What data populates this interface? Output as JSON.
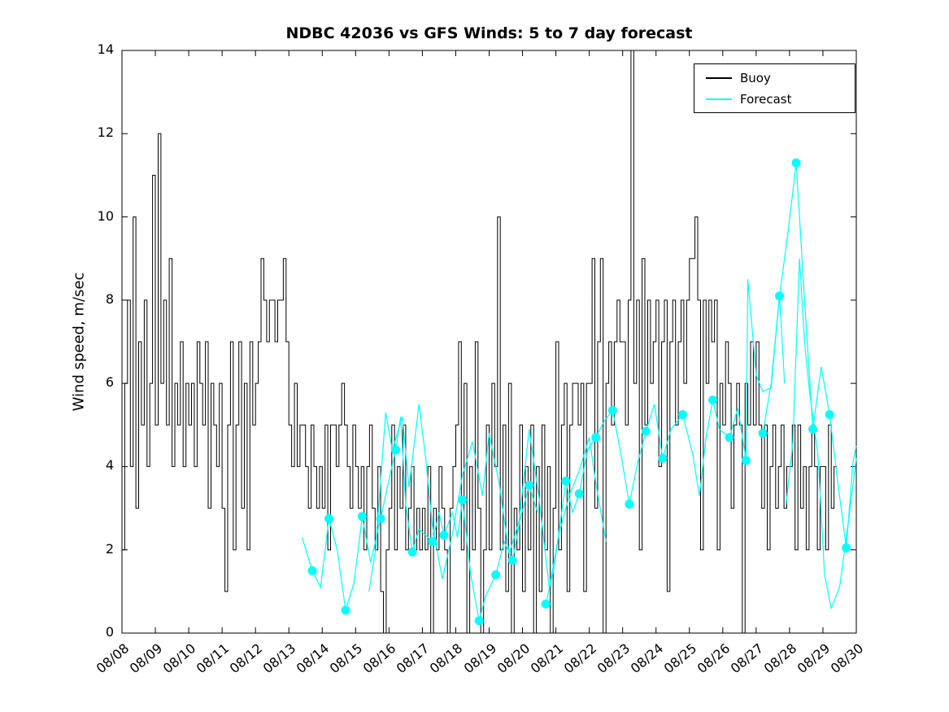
{
  "chart_data": {
    "type": "line",
    "title": "NDBC 42036 vs GFS Winds: 5 to 7 day forecast",
    "xlabel": "",
    "ylabel": "Wind speed, m/sec",
    "ylim": [
      0,
      14
    ],
    "x_range_days": [
      0,
      22
    ],
    "grid": false,
    "legend_position": "top-right",
    "colors": {
      "buoy": "#000000",
      "forecast": "#00ffff",
      "axis": "#000000",
      "background": "#ffffff"
    },
    "xtick_labels": [
      "08/08",
      "08/09",
      "08/10",
      "08/11",
      "08/12",
      "08/13",
      "08/14",
      "08/15",
      "08/16",
      "08/17",
      "08/18",
      "08/19",
      "08/20",
      "08/21",
      "08/22",
      "08/23",
      "08/24",
      "08/25",
      "08/26",
      "08/27",
      "08/28",
      "08/29",
      "08/30"
    ],
    "ytick_values": [
      0,
      2,
      4,
      6,
      8,
      10,
      12,
      14
    ],
    "legend": [
      {
        "label": "Buoy",
        "color": "#000000"
      },
      {
        "label": "Forecast",
        "color": "#00ffff"
      }
    ],
    "series": [
      {
        "name": "Buoy",
        "color": "#000000",
        "style": "stairs",
        "x_start": 0,
        "x_step": 0.0833333,
        "values": [
          2,
          6,
          8,
          4,
          10,
          3,
          7,
          5,
          8,
          4,
          6,
          11,
          5,
          12,
          6,
          8,
          5,
          9,
          4,
          6,
          5,
          7,
          4,
          6,
          5,
          6,
          4,
          7,
          6,
          5,
          7,
          3,
          6,
          5,
          4,
          6,
          3,
          1,
          5,
          7,
          2,
          5,
          7,
          3,
          6,
          2,
          7,
          5,
          6,
          7,
          9,
          8,
          7,
          8,
          8,
          7,
          8,
          8,
          9,
          7,
          5,
          4,
          6,
          4,
          5,
          5,
          4,
          3,
          5,
          4,
          3,
          4,
          3,
          5,
          2,
          5,
          5,
          4,
          5,
          6,
          5,
          4,
          3,
          5,
          4,
          3,
          4,
          2,
          4,
          5,
          3,
          2,
          4,
          1,
          0,
          2,
          3,
          5,
          2,
          4,
          3,
          5,
          2,
          3,
          4,
          2,
          3,
          2,
          3,
          2,
          4,
          0,
          3,
          2,
          4,
          3,
          2,
          0,
          3,
          4,
          5,
          7,
          2,
          6,
          0,
          4,
          2,
          7,
          3,
          0,
          2,
          5,
          2,
          6,
          4,
          10,
          2,
          5,
          1,
          6,
          0,
          3,
          2,
          5,
          1,
          4,
          2,
          5,
          0,
          4,
          1,
          5,
          2,
          4,
          0,
          3,
          7,
          2,
          5,
          6,
          1,
          5,
          6,
          6,
          5,
          6,
          1,
          6,
          6,
          9,
          3,
          7,
          9,
          0,
          6,
          7,
          5,
          7,
          8,
          7,
          7,
          5,
          8,
          14,
          6,
          8,
          2,
          9,
          5,
          8,
          6,
          7,
          8,
          4,
          7,
          8,
          1,
          7,
          8,
          5,
          7,
          8,
          6,
          8,
          9,
          9,
          10,
          8,
          2,
          8,
          6,
          8,
          7,
          8,
          2,
          6,
          5,
          7,
          6,
          3,
          5,
          6,
          5,
          0,
          6,
          5,
          7,
          5,
          7,
          5,
          3,
          5,
          2,
          4,
          5,
          3,
          4,
          5,
          3,
          4,
          4,
          5,
          2,
          5,
          3,
          4,
          2,
          4,
          5,
          4,
          2,
          4,
          4,
          2,
          5,
          3,
          4,
          4
        ]
      },
      {
        "name": "Forecast run 1",
        "color": "#00ffff",
        "style": "line",
        "points": [
          [
            5.4,
            2.3
          ],
          [
            5.7,
            1.5
          ],
          [
            5.95,
            1.1
          ],
          [
            6.2,
            2.75
          ],
          [
            6.45,
            2.0
          ],
          [
            6.7,
            0.55
          ],
          [
            6.95,
            1.2
          ],
          [
            7.2,
            2.8
          ],
          [
            7.45,
            1.7
          ],
          [
            7.75,
            2.75
          ],
          [
            7.95,
            3.5
          ],
          [
            8.2,
            4.4
          ],
          [
            8.35,
            5.2
          ],
          [
            8.5,
            3.1
          ],
          [
            8.7,
            1.95
          ],
          [
            8.9,
            2.5
          ],
          [
            9.3,
            2.2
          ],
          [
            9.5,
            2.9
          ],
          [
            9.65,
            2.35
          ],
          [
            9.9,
            2.9
          ],
          [
            10.05,
            2.3
          ],
          [
            10.2,
            3.2
          ],
          [
            10.45,
            1.4
          ],
          [
            10.7,
            0.3
          ],
          [
            10.9,
            0.9
          ],
          [
            11.2,
            1.4
          ],
          [
            11.45,
            2.2
          ],
          [
            11.7,
            1.75
          ],
          [
            11.95,
            2.8
          ],
          [
            12.2,
            3.55
          ],
          [
            12.45,
            2.9
          ]
        ]
      },
      {
        "name": "Forecast run 2",
        "color": "#00ffff",
        "style": "line",
        "points": [
          [
            7.4,
            1.0
          ],
          [
            7.6,
            2.0
          ],
          [
            7.9,
            5.3
          ],
          [
            8.1,
            4.4
          ],
          [
            8.4,
            5.2
          ],
          [
            8.6,
            3.5
          ],
          [
            8.9,
            5.5
          ],
          [
            9.1,
            4.2
          ],
          [
            9.3,
            2.6
          ],
          [
            9.6,
            1.3
          ],
          [
            9.9,
            2.4
          ],
          [
            10.2,
            3.8
          ],
          [
            10.5,
            4.6
          ],
          [
            10.8,
            3.3
          ],
          [
            11.0,
            4.8
          ],
          [
            11.3,
            3.6
          ],
          [
            11.6,
            1.9
          ],
          [
            11.9,
            2.7
          ],
          [
            12.2,
            4.9
          ],
          [
            12.5,
            3.2
          ],
          [
            12.8,
            1.1
          ],
          [
            13.1,
            2.4
          ],
          [
            13.4,
            3.3
          ],
          [
            13.7,
            3.9
          ],
          [
            14.0,
            4.7
          ],
          [
            14.2,
            3.6
          ],
          [
            14.5,
            2.2
          ]
        ]
      },
      {
        "name": "Forecast run 3",
        "color": "#00ffff",
        "style": "line",
        "points": [
          [
            12.7,
            0.7
          ],
          [
            12.95,
            1.6
          ],
          [
            13.3,
            3.65
          ],
          [
            13.5,
            2.9
          ],
          [
            13.7,
            3.35
          ],
          [
            13.95,
            4.4
          ],
          [
            14.2,
            4.7
          ],
          [
            14.45,
            5.1
          ],
          [
            14.7,
            5.35
          ],
          [
            14.95,
            4.3
          ],
          [
            15.2,
            3.1
          ],
          [
            15.45,
            4.1
          ],
          [
            15.7,
            4.85
          ],
          [
            15.95,
            5.5
          ],
          [
            16.2,
            4.2
          ],
          [
            16.45,
            4.9
          ],
          [
            16.8,
            5.25
          ],
          [
            17.1,
            4.3
          ],
          [
            17.3,
            3.3
          ],
          [
            17.5,
            4.7
          ],
          [
            17.7,
            5.6
          ],
          [
            17.9,
            4.9
          ],
          [
            18.2,
            4.7
          ],
          [
            18.45,
            5.4
          ],
          [
            18.7,
            4.15
          ],
          [
            18.75,
            8.5
          ],
          [
            19.0,
            6.2
          ],
          [
            19.2,
            5.8
          ],
          [
            19.45,
            5.9
          ],
          [
            19.7,
            8.1
          ],
          [
            19.85,
            6.0
          ]
        ]
      },
      {
        "name": "Forecast run 4",
        "color": "#00ffff",
        "style": "line",
        "points": [
          [
            19.2,
            4.8
          ],
          [
            19.45,
            6.0
          ],
          [
            19.7,
            8.1
          ],
          [
            19.95,
            9.6
          ],
          [
            20.2,
            11.3
          ],
          [
            20.45,
            8.0
          ],
          [
            20.7,
            4.9
          ],
          [
            20.95,
            6.4
          ],
          [
            21.2,
            5.25
          ],
          [
            21.45,
            3.6
          ],
          [
            21.7,
            2.05
          ],
          [
            21.9,
            4.1
          ],
          [
            22.0,
            4.5
          ]
        ]
      },
      {
        "name": "Forecast run 5",
        "color": "#00ffff",
        "style": "line",
        "points": [
          [
            19.9,
            3.1
          ],
          [
            20.1,
            4.6
          ],
          [
            20.3,
            9.0
          ],
          [
            20.45,
            7.0
          ],
          [
            20.6,
            5.8
          ],
          [
            20.85,
            4.3
          ],
          [
            21.05,
            1.4
          ],
          [
            21.25,
            0.6
          ],
          [
            21.5,
            1.1
          ],
          [
            21.8,
            2.9
          ],
          [
            22.0,
            4.2
          ]
        ]
      }
    ],
    "forecast_markers": [
      [
        5.7,
        1.5
      ],
      [
        6.2,
        2.75
      ],
      [
        6.7,
        0.55
      ],
      [
        7.2,
        2.8
      ],
      [
        7.75,
        2.75
      ],
      [
        8.2,
        4.4
      ],
      [
        8.7,
        1.95
      ],
      [
        9.3,
        2.2
      ],
      [
        9.65,
        2.35
      ],
      [
        10.2,
        3.2
      ],
      [
        10.7,
        0.3
      ],
      [
        11.2,
        1.4
      ],
      [
        11.7,
        1.75
      ],
      [
        12.2,
        3.55
      ],
      [
        12.7,
        0.7
      ],
      [
        13.3,
        3.65
      ],
      [
        13.7,
        3.35
      ],
      [
        14.2,
        4.7
      ],
      [
        14.7,
        5.35
      ],
      [
        15.2,
        3.1
      ],
      [
        15.7,
        4.85
      ],
      [
        16.2,
        4.2
      ],
      [
        16.8,
        5.25
      ],
      [
        17.7,
        5.6
      ],
      [
        18.2,
        4.7
      ],
      [
        18.7,
        4.15
      ],
      [
        19.2,
        4.8
      ],
      [
        19.7,
        8.1
      ],
      [
        20.2,
        11.3
      ],
      [
        20.7,
        4.9
      ],
      [
        21.2,
        5.25
      ],
      [
        21.7,
        2.05
      ]
    ]
  }
}
